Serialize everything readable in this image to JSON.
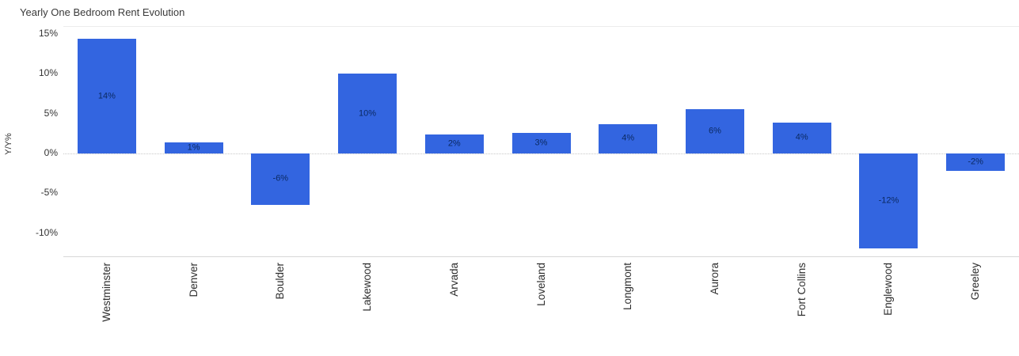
{
  "title": "Yearly One Bedroom Rent Evolution",
  "chart_data": {
    "type": "bar",
    "title": "Yearly One Bedroom Rent Evolution",
    "xlabel": "",
    "ylabel": "Y/Y%",
    "categories": [
      "Westminster",
      "Denver",
      "Boulder",
      "Lakewood",
      "Arvada",
      "Loveland",
      "Longmont",
      "Aurora",
      "Fort Collins",
      "Englewood",
      "Greeley"
    ],
    "values": [
      14.4,
      1.4,
      -6.4,
      10.0,
      2.4,
      2.6,
      3.7,
      5.6,
      3.9,
      -11.9,
      -2.2
    ],
    "bar_labels": [
      "14%",
      "1%",
      "-6%",
      "10%",
      "2%",
      "3%",
      "4%",
      "6%",
      "4%",
      "-12%",
      "-2%"
    ],
    "y_ticks": [
      {
        "label": "15%",
        "value": 15
      },
      {
        "label": "10%",
        "value": 10
      },
      {
        "label": "5%",
        "value": 5
      },
      {
        "label": "0%",
        "value": 0
      },
      {
        "label": "-5%",
        "value": -5
      },
      {
        "label": "-10%",
        "value": -10
      }
    ],
    "ylim": [
      -12.9,
      15.9
    ],
    "bar_color": "#3365E0",
    "label_color": "#0B2A63",
    "grid": "zero-line-only",
    "legend": "none"
  }
}
